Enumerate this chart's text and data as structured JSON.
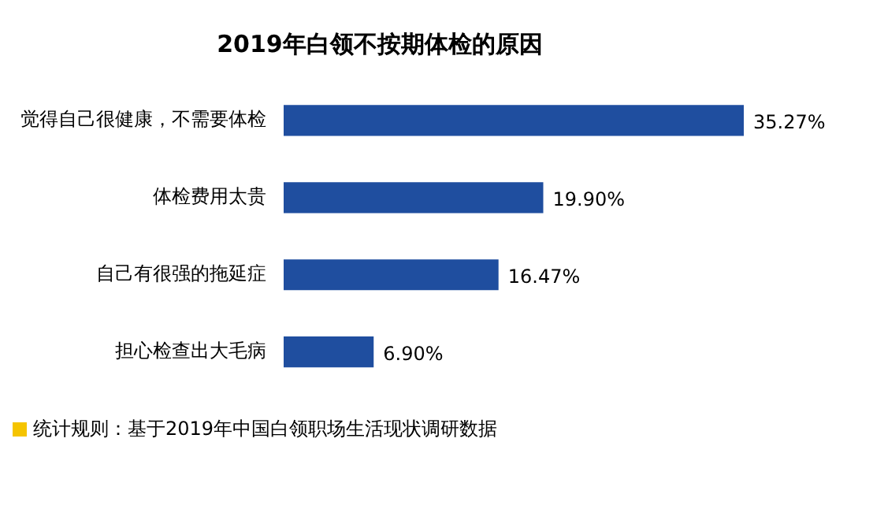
{
  "chart_data": {
    "type": "bar",
    "orientation": "horizontal",
    "title": "2019年白领不按期体检的原因",
    "categories": [
      "觉得自己很健康，不需要体检",
      "体检费用太贵",
      "自己有很强的拖延症",
      "担心检查出大毛病"
    ],
    "values": [
      35.27,
      19.9,
      16.47,
      6.9
    ],
    "value_labels": [
      "35.27%",
      "19.90%",
      "16.47%",
      "6.90%"
    ],
    "color": "#1f4e9f",
    "legend": false,
    "annotations": [
      "统计规则：基于2019年中国白领职场生活现状调研数据"
    ]
  }
}
